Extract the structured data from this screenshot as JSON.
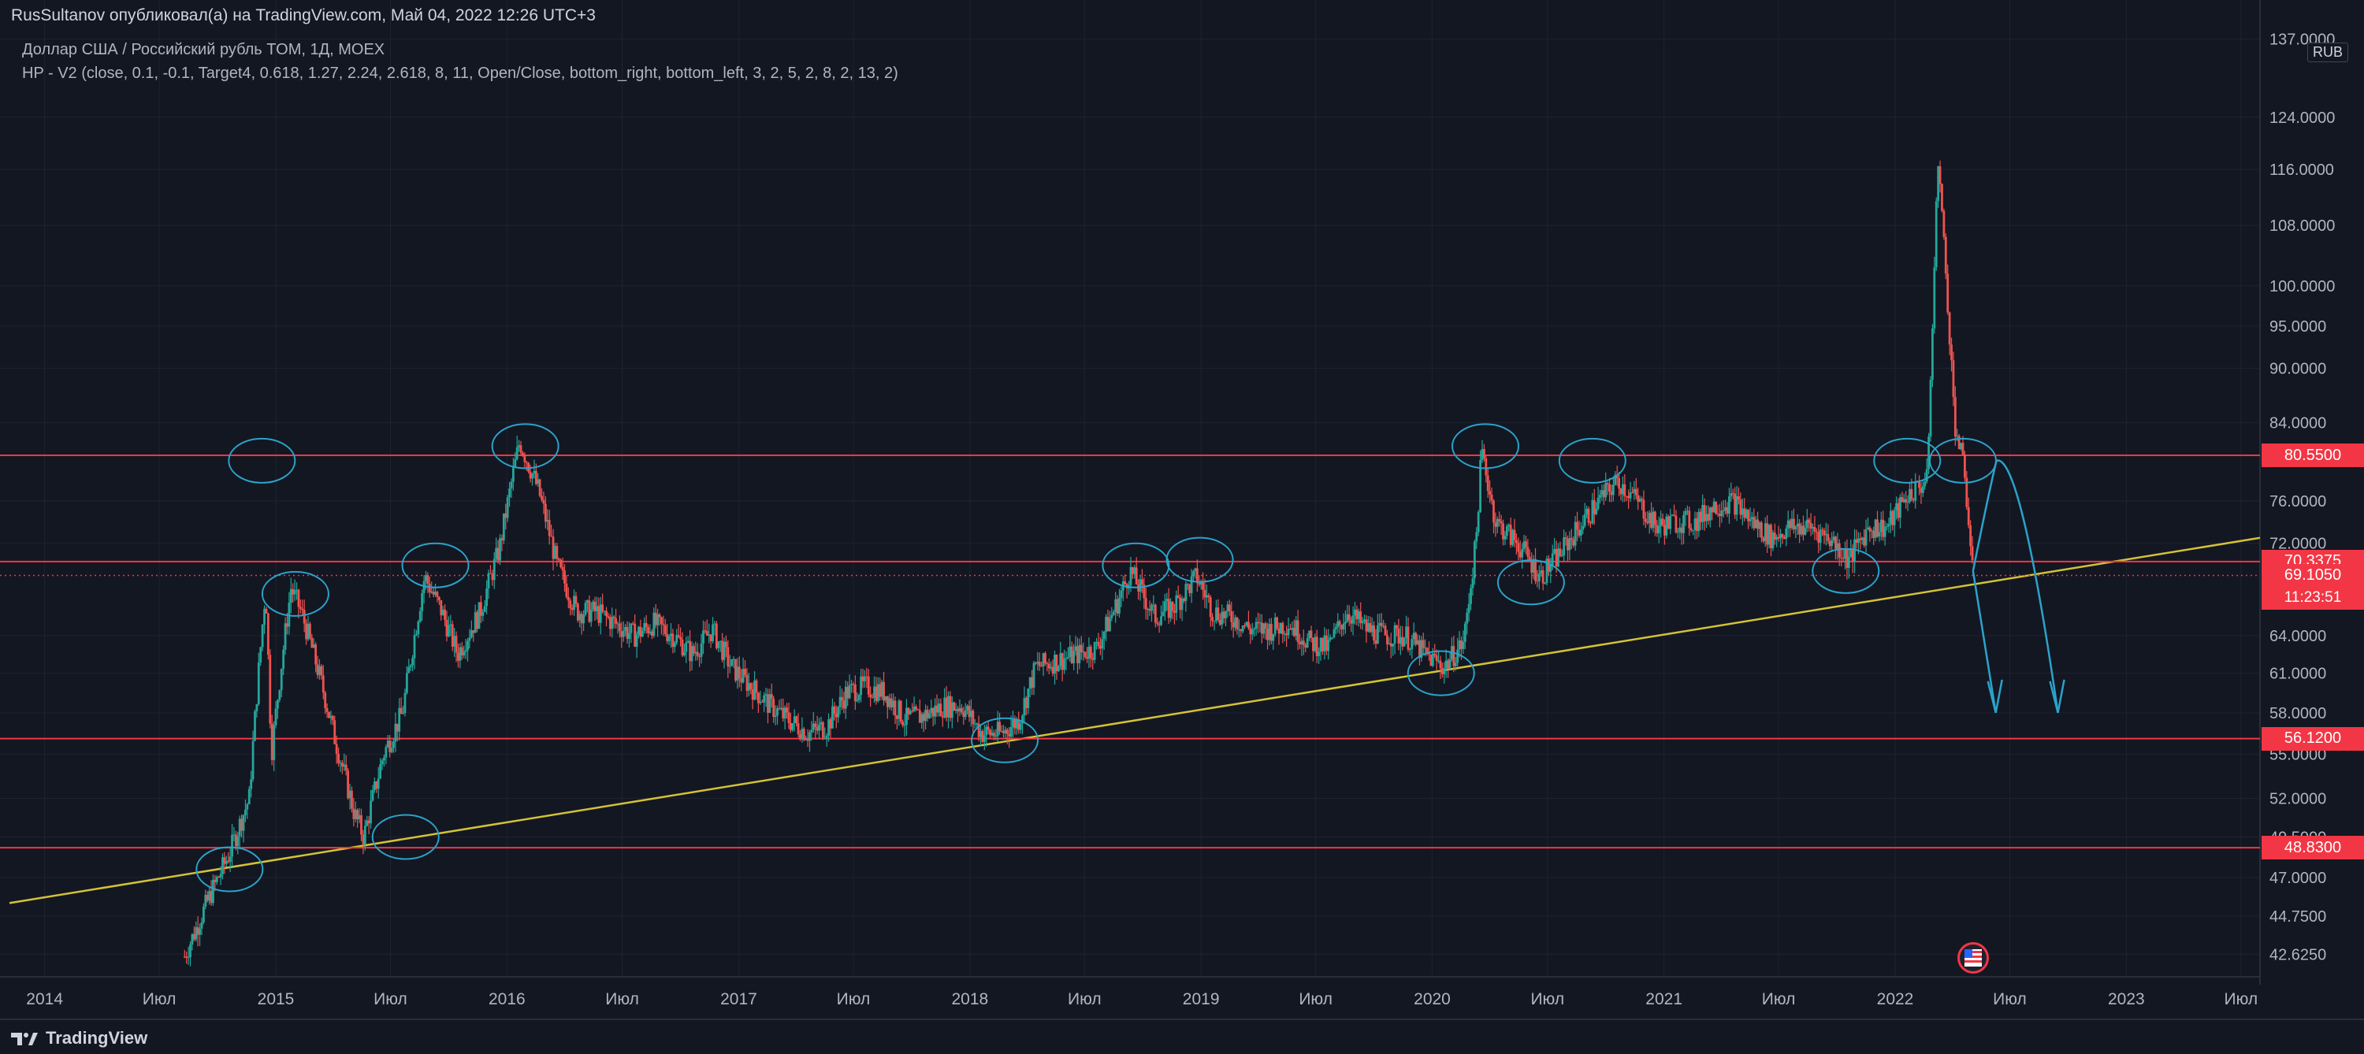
{
  "header": {
    "publisher_line": "RusSultanov опубликовал(а) на TradingView.com, Май 04, 2022 12:26 UTC+3",
    "symbol_line": "Доллар США / Российский рубль TOM, 1Д, MOEX",
    "indicator_line": "HP - V2 (close, 0.1, -0.1, Target4, 0.618, 1.27, 2.24, 2.618, 8, 11, Open/Close, bottom_right, bottom_left, 3, 2, 5, 2, 8, 2, 13, 2)"
  },
  "currency": "RUB",
  "footer": {
    "brand": "TradingView"
  },
  "colors": {
    "background": "#131722",
    "grid": "#1f2330",
    "up": "#26a69a",
    "down": "#ef5350",
    "level": "#f23645",
    "trendline": "#d4c236",
    "annotation": "#2ba3c9"
  },
  "chart_data": {
    "type": "candlestick",
    "title": "",
    "y_scale": "log",
    "ylim": [
      42.0,
      140.0
    ],
    "x_range": [
      "2013-10-01",
      "2023-12-31"
    ],
    "y_ticks": [
      "137.0000",
      "124.0000",
      "116.0000",
      "108.0000",
      "100.0000",
      "95.0000",
      "90.0000",
      "84.0000",
      "76.0000",
      "72.0000",
      "64.0000",
      "61.0000",
      "58.0000",
      "55.0000",
      "52.0000",
      "49.5000",
      "47.0000",
      "44.7500",
      "42.6250"
    ],
    "x_ticks": [
      {
        "label": "2014",
        "date": "2014-01-01"
      },
      {
        "label": "Июл",
        "date": "2014-07-01"
      },
      {
        "label": "2015",
        "date": "2015-01-01"
      },
      {
        "label": "Июл",
        "date": "2015-07-01"
      },
      {
        "label": "2016",
        "date": "2016-01-01"
      },
      {
        "label": "Июл",
        "date": "2016-07-01"
      },
      {
        "label": "2017",
        "date": "2017-01-01"
      },
      {
        "label": "Июл",
        "date": "2017-07-01"
      },
      {
        "label": "2018",
        "date": "2018-01-01"
      },
      {
        "label": "Июл",
        "date": "2018-07-01"
      },
      {
        "label": "2019",
        "date": "2019-01-01"
      },
      {
        "label": "Июл",
        "date": "2019-07-01"
      },
      {
        "label": "2020",
        "date": "2020-01-01"
      },
      {
        "label": "Июл",
        "date": "2020-07-01"
      },
      {
        "label": "2021",
        "date": "2021-01-01"
      },
      {
        "label": "Июл",
        "date": "2021-07-01"
      },
      {
        "label": "2022",
        "date": "2022-01-01"
      },
      {
        "label": "Июл",
        "date": "2022-07-01"
      },
      {
        "label": "2023",
        "date": "2023-01-01"
      },
      {
        "label": "Июл",
        "date": "2023-07-01"
      }
    ],
    "horizontal_levels": [
      {
        "value": 80.55,
        "label": "80.5500"
      },
      {
        "value": 70.3375,
        "label": "70.3375"
      },
      {
        "value": 56.12,
        "label": "56.1200"
      },
      {
        "value": 48.83,
        "label": "48.8300"
      }
    ],
    "current_price": {
      "value": 69.105,
      "label": "69.1050",
      "countdown": "11:23:51"
    },
    "trendline": {
      "start": {
        "date": "2013-10-01",
        "value": 45.5
      },
      "end": {
        "date": "2023-12-31",
        "value": 72.5
      }
    },
    "price_path": [
      {
        "date": "2014-08-10",
        "value": 42.5
      },
      {
        "date": "2014-09-20",
        "value": 46.0
      },
      {
        "date": "2014-10-20",
        "value": 48.5
      },
      {
        "date": "2014-11-20",
        "value": 52.0
      },
      {
        "date": "2014-12-16",
        "value": 68.0
      },
      {
        "date": "2014-12-25",
        "value": 55.0
      },
      {
        "date": "2015-01-25",
        "value": 68.0
      },
      {
        "date": "2015-02-10",
        "value": 66.0
      },
      {
        "date": "2015-03-10",
        "value": 61.0
      },
      {
        "date": "2015-04-05",
        "value": 56.0
      },
      {
        "date": "2015-05-05",
        "value": 51.0
      },
      {
        "date": "2015-05-20",
        "value": 49.5
      },
      {
        "date": "2015-06-20",
        "value": 55.0
      },
      {
        "date": "2015-07-20",
        "value": 58.0
      },
      {
        "date": "2015-08-24",
        "value": 69.0
      },
      {
        "date": "2015-09-20",
        "value": 66.0
      },
      {
        "date": "2015-10-15",
        "value": 62.5
      },
      {
        "date": "2015-11-20",
        "value": 66.0
      },
      {
        "date": "2015-12-20",
        "value": 71.5
      },
      {
        "date": "2016-01-21",
        "value": 82.0
      },
      {
        "date": "2016-02-20",
        "value": 77.0
      },
      {
        "date": "2016-03-20",
        "value": 70.0
      },
      {
        "date": "2016-04-20",
        "value": 66.0
      },
      {
        "date": "2016-05-20",
        "value": 66.0
      },
      {
        "date": "2016-06-20",
        "value": 65.0
      },
      {
        "date": "2016-07-20",
        "value": 64.0
      },
      {
        "date": "2016-08-20",
        "value": 65.0
      },
      {
        "date": "2016-09-20",
        "value": 64.0
      },
      {
        "date": "2016-10-20",
        "value": 62.5
      },
      {
        "date": "2016-11-20",
        "value": 64.5
      },
      {
        "date": "2016-12-20",
        "value": 61.5
      },
      {
        "date": "2017-01-20",
        "value": 60.0
      },
      {
        "date": "2017-02-20",
        "value": 58.5
      },
      {
        "date": "2017-03-20",
        "value": 57.5
      },
      {
        "date": "2017-04-20",
        "value": 56.5
      },
      {
        "date": "2017-05-20",
        "value": 57.0
      },
      {
        "date": "2017-06-20",
        "value": 59.5
      },
      {
        "date": "2017-07-20",
        "value": 60.0
      },
      {
        "date": "2017-08-20",
        "value": 59.5
      },
      {
        "date": "2017-09-20",
        "value": 57.5
      },
      {
        "date": "2017-10-20",
        "value": 57.8
      },
      {
        "date": "2017-11-20",
        "value": 58.5
      },
      {
        "date": "2017-12-20",
        "value": 58.5
      },
      {
        "date": "2018-01-20",
        "value": 56.5
      },
      {
        "date": "2018-02-20",
        "value": 56.5
      },
      {
        "date": "2018-03-20",
        "value": 57.5
      },
      {
        "date": "2018-04-15",
        "value": 61.5
      },
      {
        "date": "2018-05-20",
        "value": 62.0
      },
      {
        "date": "2018-06-20",
        "value": 62.5
      },
      {
        "date": "2018-07-20",
        "value": 63.0
      },
      {
        "date": "2018-08-20",
        "value": 66.5
      },
      {
        "date": "2018-09-11",
        "value": 69.5
      },
      {
        "date": "2018-10-20",
        "value": 65.5
      },
      {
        "date": "2018-11-20",
        "value": 66.5
      },
      {
        "date": "2018-12-25",
        "value": 69.0
      },
      {
        "date": "2019-01-20",
        "value": 66.0
      },
      {
        "date": "2019-02-20",
        "value": 65.5
      },
      {
        "date": "2019-03-20",
        "value": 64.5
      },
      {
        "date": "2019-04-20",
        "value": 64.5
      },
      {
        "date": "2019-05-20",
        "value": 65.0
      },
      {
        "date": "2019-06-20",
        "value": 63.5
      },
      {
        "date": "2019-07-20",
        "value": 63.0
      },
      {
        "date": "2019-08-20",
        "value": 66.0
      },
      {
        "date": "2019-09-20",
        "value": 64.5
      },
      {
        "date": "2019-10-20",
        "value": 64.0
      },
      {
        "date": "2019-11-20",
        "value": 64.0
      },
      {
        "date": "2019-12-20",
        "value": 62.5
      },
      {
        "date": "2020-01-20",
        "value": 61.5
      },
      {
        "date": "2020-02-20",
        "value": 63.5
      },
      {
        "date": "2020-03-10",
        "value": 72.0
      },
      {
        "date": "2020-03-19",
        "value": 81.0
      },
      {
        "date": "2020-04-10",
        "value": 74.0
      },
      {
        "date": "2020-05-15",
        "value": 72.0
      },
      {
        "date": "2020-06-20",
        "value": 69.0
      },
      {
        "date": "2020-07-20",
        "value": 71.0
      },
      {
        "date": "2020-08-20",
        "value": 73.5
      },
      {
        "date": "2020-09-20",
        "value": 76.0
      },
      {
        "date": "2020-10-20",
        "value": 78.0
      },
      {
        "date": "2020-11-20",
        "value": 76.0
      },
      {
        "date": "2020-12-20",
        "value": 73.5
      },
      {
        "date": "2021-01-20",
        "value": 74.0
      },
      {
        "date": "2021-02-20",
        "value": 74.0
      },
      {
        "date": "2021-03-20",
        "value": 75.5
      },
      {
        "date": "2021-04-20",
        "value": 76.0
      },
      {
        "date": "2021-05-20",
        "value": 74.0
      },
      {
        "date": "2021-06-20",
        "value": 72.5
      },
      {
        "date": "2021-07-20",
        "value": 73.5
      },
      {
        "date": "2021-08-20",
        "value": 73.5
      },
      {
        "date": "2021-09-20",
        "value": 72.5
      },
      {
        "date": "2021-10-20",
        "value": 70.5
      },
      {
        "date": "2021-11-20",
        "value": 73.5
      },
      {
        "date": "2021-12-20",
        "value": 73.5
      },
      {
        "date": "2022-01-20",
        "value": 76.5
      },
      {
        "date": "2022-02-20",
        "value": 78.0
      },
      {
        "date": "2022-02-28",
        "value": 92.0
      },
      {
        "date": "2022-03-10",
        "value": 118.0
      },
      {
        "date": "2022-03-20",
        "value": 104.0
      },
      {
        "date": "2022-04-05",
        "value": 84.0
      },
      {
        "date": "2022-04-20",
        "value": 79.0
      },
      {
        "date": "2022-05-04",
        "value": 69.1
      }
    ],
    "annotations": {
      "circles": [
        {
          "date": "2014-12-10",
          "value": 80.0
        },
        {
          "date": "2015-02-01",
          "value": 67.5
        },
        {
          "date": "2014-10-20",
          "value": 47.5
        },
        {
          "date": "2015-07-25",
          "value": 49.5
        },
        {
          "date": "2015-09-10",
          "value": 70.0
        },
        {
          "date": "2016-01-30",
          "value": 81.5
        },
        {
          "date": "2018-02-25",
          "value": 56.0
        },
        {
          "date": "2018-09-20",
          "value": 70.0
        },
        {
          "date": "2018-12-30",
          "value": 70.5
        },
        {
          "date": "2020-01-15",
          "value": 61.0
        },
        {
          "date": "2020-03-25",
          "value": 81.5
        },
        {
          "date": "2020-06-05",
          "value": 68.5
        },
        {
          "date": "2020-09-10",
          "value": 80.0
        },
        {
          "date": "2021-10-15",
          "value": 69.5
        },
        {
          "date": "2022-01-20",
          "value": 80.0
        },
        {
          "date": "2022-04-18",
          "value": 80.0
        }
      ],
      "projections": [
        {
          "from": {
            "date": "2022-05-04",
            "value": 69.5
          },
          "to": {
            "date": "2022-05-15",
            "value": 58.0
          }
        },
        {
          "from": {
            "date": "2022-05-04",
            "value": 69.5
          },
          "via": {
            "date": "2022-06-10",
            "value": 80.0
          },
          "to": {
            "date": "2022-09-15",
            "value": 58.0
          }
        }
      ]
    },
    "grid": true,
    "legend": "none"
  }
}
